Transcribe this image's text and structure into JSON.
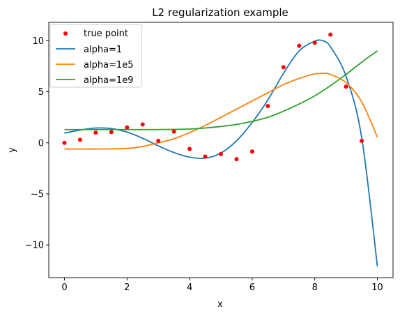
{
  "chart_data": {
    "type": "line",
    "title": "L2 regularization example",
    "xlabel": "x",
    "ylabel": "y",
    "xlim": [
      -0.5,
      10.5
    ],
    "ylim": [
      -13.2,
      11.8
    ],
    "xticks": [
      0,
      2,
      4,
      6,
      8,
      10
    ],
    "yticks": [
      -10,
      -5,
      0,
      5,
      10
    ],
    "xtick_labels": [
      "0",
      "2",
      "4",
      "6",
      "8",
      "10"
    ],
    "ytick_labels": [
      "−10",
      "−5",
      "0",
      "5",
      "10"
    ],
    "legend_position": "upper-left",
    "scatter": {
      "name": "true point",
      "color": "#ff0000",
      "x": [
        0,
        0.5,
        1,
        1.5,
        2,
        2.5,
        3,
        3.5,
        4,
        4.5,
        5,
        5.5,
        6,
        6.5,
        7,
        7.5,
        8,
        8.5,
        9,
        9.5
      ],
      "y": [
        0.0,
        0.3,
        1.0,
        1.05,
        1.5,
        1.8,
        0.2,
        1.1,
        -0.6,
        -1.35,
        -1.1,
        -1.6,
        -0.85,
        3.6,
        7.4,
        9.5,
        9.8,
        10.6,
        5.5,
        0.2
      ]
    },
    "series": [
      {
        "name": "alpha=1",
        "color": "#1f77b4",
        "x": [
          0,
          0.5,
          1,
          1.5,
          2,
          2.5,
          3,
          3.5,
          4,
          4.5,
          5,
          5.5,
          6,
          6.5,
          7,
          7.5,
          8,
          8.25,
          8.5,
          9,
          9.5,
          10
        ],
        "y": [
          0.95,
          1.25,
          1.45,
          1.4,
          1.05,
          0.45,
          -0.3,
          -0.95,
          -1.4,
          -1.5,
          -1.0,
          0.2,
          2.0,
          4.2,
          6.8,
          9.0,
          9.95,
          10.0,
          9.4,
          6.5,
          0.5,
          -12.1
        ]
      },
      {
        "name": "alpha=1e5",
        "color": "#ff7f0e",
        "x": [
          0,
          1,
          2,
          2.5,
          3,
          3.5,
          4,
          4.5,
          5,
          5.5,
          6,
          6.5,
          7,
          7.5,
          8,
          8.3,
          8.5,
          9,
          9.5,
          10
        ],
        "y": [
          -0.6,
          -0.6,
          -0.55,
          -0.35,
          0.0,
          0.4,
          1.0,
          1.7,
          2.5,
          3.3,
          4.1,
          4.9,
          5.7,
          6.3,
          6.75,
          6.8,
          6.7,
          5.9,
          4.0,
          0.55
        ]
      },
      {
        "name": "alpha=1e9",
        "color": "#2ca02c",
        "x": [
          0,
          1,
          2,
          3,
          4,
          4.5,
          5,
          5.5,
          6,
          6.5,
          7,
          7.5,
          8,
          8.5,
          9,
          9.5,
          10
        ],
        "y": [
          1.3,
          1.3,
          1.3,
          1.3,
          1.35,
          1.45,
          1.6,
          1.8,
          2.1,
          2.5,
          3.1,
          3.8,
          4.6,
          5.6,
          6.7,
          7.9,
          9.0
        ]
      }
    ]
  }
}
